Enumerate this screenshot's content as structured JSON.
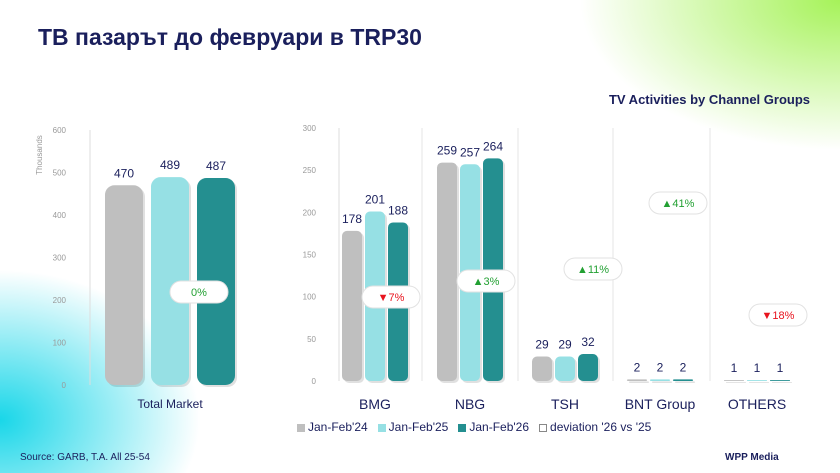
{
  "title": "ТВ пазарът до февруари в TRP30",
  "subtitle": "TV Activities by Channel Groups",
  "source": "Source: GARB, T.A. All 25-54",
  "logo": "WPP Media",
  "colors": {
    "Jan-Feb'24": "#bfbfbf",
    "Jan-Feb'25": "#96e0e4",
    "Jan-Feb'26": "#248f90",
    "up": "#22a032",
    "down": "#e8141e",
    "text": "#1a1f5c"
  },
  "legend": [
    "Jan-Feb'24",
    "Jan-Feb'25",
    "Jan-Feb'26",
    "deviation '26 vs '25"
  ],
  "chart_data": [
    {
      "type": "bar",
      "ylabel": "Thousands",
      "ylim": [
        0,
        600
      ],
      "yticks": [
        0,
        100,
        200,
        300,
        400,
        500,
        600
      ],
      "categories": [
        "Total Market"
      ],
      "series": [
        {
          "name": "Jan-Feb'24",
          "values": [
            470
          ]
        },
        {
          "name": "Jan-Feb'25",
          "values": [
            489
          ]
        },
        {
          "name": "Jan-Feb'26",
          "values": [
            487
          ]
        }
      ],
      "deviation": [
        "0%"
      ],
      "deviation_dir": [
        "flat"
      ]
    },
    {
      "type": "bar",
      "ylim": [
        0,
        300
      ],
      "yticks": [
        0,
        50,
        100,
        150,
        200,
        250,
        300
      ],
      "categories": [
        "BMG",
        "NBG",
        "TSH",
        "BNT Group",
        "OTHERS"
      ],
      "series": [
        {
          "name": "Jan-Feb'24",
          "values": [
            178,
            259,
            29,
            2,
            1
          ]
        },
        {
          "name": "Jan-Feb'25",
          "values": [
            201,
            257,
            29,
            2,
            1
          ]
        },
        {
          "name": "Jan-Feb'26",
          "values": [
            188,
            264,
            32,
            2,
            1
          ]
        }
      ],
      "deviation": [
        "▼7%",
        "▲3%",
        "▲11%",
        "▲41%",
        "▼18%"
      ],
      "deviation_dir": [
        "down",
        "up",
        "up",
        "up",
        "down"
      ]
    }
  ]
}
